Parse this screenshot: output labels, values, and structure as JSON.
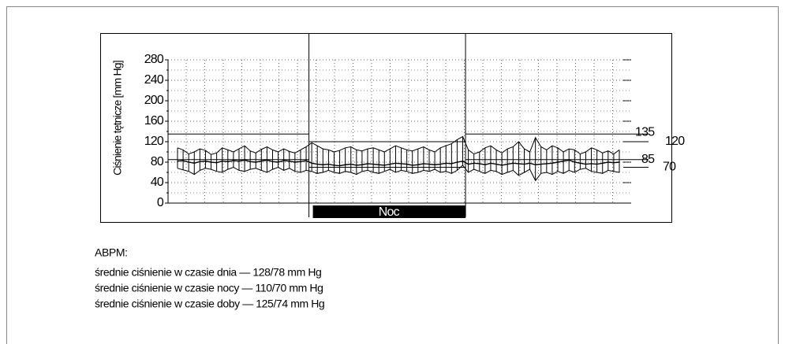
{
  "chart_data": {
    "type": "line",
    "ylabel": "Ciśnienie tętnicze [mm Hg]",
    "ylim": [
      0,
      280
    ],
    "yticks": [
      0,
      40,
      80,
      120,
      160,
      200,
      240,
      280
    ],
    "yticks_minor": [
      20,
      60,
      100,
      140,
      180,
      220,
      260
    ],
    "night": {
      "label": "Noc",
      "start": 23.5,
      "end": 51.5
    },
    "references": [
      {
        "label": "135",
        "value": 135,
        "period": "day"
      },
      {
        "label": "120",
        "value": 120,
        "period": "night"
      },
      {
        "label": "85",
        "value": 85,
        "period": "day"
      },
      {
        "label": "70",
        "value": 70,
        "period": "night"
      }
    ],
    "grid": true,
    "series": [
      {
        "color": "#000",
        "values": [
          108,
          104,
          96,
          100,
          106,
          103,
          95,
          98,
          108,
          104,
          100,
          106,
          112,
          102,
          98,
          105,
          110,
          104,
          100,
          106,
          101,
          98,
          104,
          110,
          118,
          112,
          106,
          104,
          100,
          103,
          108,
          110,
          104,
          102,
          106,
          108,
          104,
          100,
          106,
          112,
          108,
          104,
          102,
          106,
          110,
          104,
          100,
          108,
          112,
          116,
          124,
          130,
          104,
          96,
          100,
          108,
          112,
          104,
          98,
          106,
          110,
          120,
          106,
          100,
          128,
          110,
          104,
          112,
          108,
          100,
          106,
          104,
          96,
          100,
          108,
          104,
          98,
          102,
          96,
          104
        ]
      },
      {
        "color": "#000",
        "values": [
          68,
          65,
          62,
          56,
          64,
          68,
          66,
          62,
          60,
          66,
          70,
          64,
          62,
          66,
          68,
          64,
          60,
          66,
          70,
          64,
          68,
          62,
          60,
          64,
          62,
          58,
          60,
          64,
          60,
          58,
          62,
          60,
          56,
          62,
          64,
          60,
          58,
          62,
          66,
          60,
          64,
          62,
          58,
          60,
          64,
          62,
          66,
          60,
          62,
          58,
          64,
          74,
          60,
          66,
          62,
          58,
          64,
          62,
          56,
          60,
          64,
          54,
          60,
          66,
          44,
          58,
          60,
          56,
          62,
          58,
          64,
          60,
          66,
          68,
          62,
          60,
          58,
          64,
          62,
          60
        ]
      },
      {
        "color": "#000",
        "values": [
          82,
          83,
          80,
          78,
          81,
          82,
          80,
          79,
          82,
          81,
          83,
          82,
          84,
          81,
          80,
          82,
          84,
          81,
          80,
          83,
          82,
          80,
          81,
          83,
          78,
          76,
          75,
          76,
          74,
          73,
          75,
          76,
          74,
          75,
          77,
          76,
          75,
          74,
          76,
          78,
          77,
          76,
          74,
          75,
          77,
          76,
          75,
          76,
          78,
          77,
          80,
          82,
          76,
          78,
          77,
          75,
          78,
          76,
          74,
          76,
          78,
          77,
          76,
          78,
          75,
          76,
          77,
          78,
          80,
          82,
          84,
          80,
          78,
          76,
          77,
          76,
          78,
          80,
          79,
          80
        ]
      }
    ]
  },
  "caption": {
    "heading": "ABPM:",
    "lines": [
      "średnie ciśnienie w czasie dnia — 128/78 mm Hg",
      "średnie ciśnienie w czasie nocy — 110/70 mm Hg",
      "średnie ciśnienie w czasie doby — 125/74 mm Hg"
    ]
  }
}
